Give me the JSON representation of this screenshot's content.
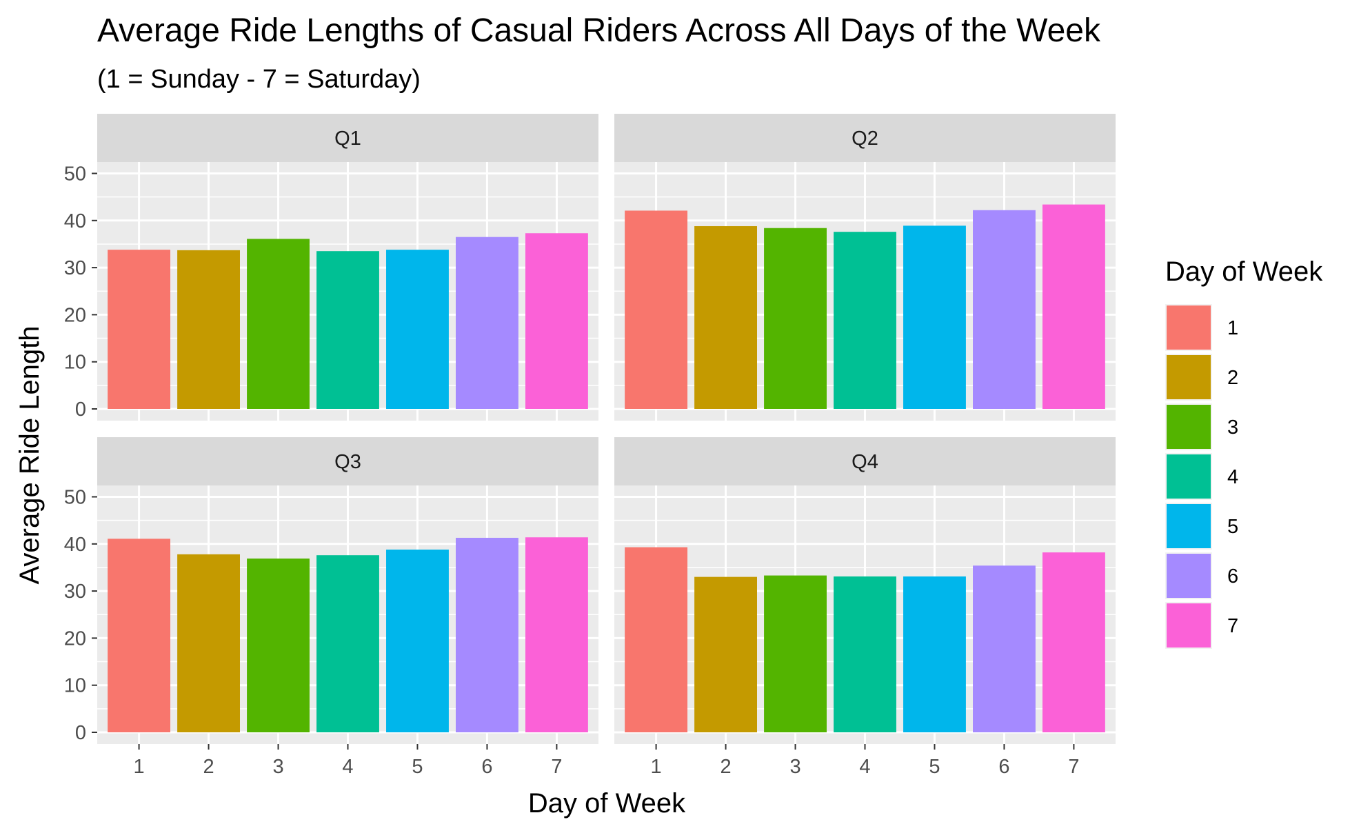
{
  "chart_data": {
    "type": "bar",
    "title": "Average Ride Lengths of Casual Riders Across All Days of the Week",
    "subtitle": "(1 = Sunday - 7 = Saturday)",
    "xlabel": "Day of Week",
    "ylabel": "Average Ride Length",
    "categories": [
      "1",
      "2",
      "3",
      "4",
      "5",
      "6",
      "7"
    ],
    "yticks": [
      0,
      10,
      20,
      30,
      40,
      50
    ],
    "ylim": [
      0,
      52
    ],
    "grid": true,
    "facets": [
      {
        "name": "Q1",
        "values": [
          33.8,
          33.7,
          36.1,
          33.5,
          33.8,
          36.5,
          37.3
        ]
      },
      {
        "name": "Q2",
        "values": [
          42.1,
          38.8,
          38.4,
          37.6,
          38.9,
          42.2,
          43.4
        ]
      },
      {
        "name": "Q3",
        "values": [
          41.1,
          37.8,
          36.9,
          37.6,
          38.8,
          41.3,
          41.4
        ]
      },
      {
        "name": "Q4",
        "values": [
          39.3,
          33.0,
          33.3,
          33.1,
          33.1,
          35.4,
          38.2
        ]
      }
    ],
    "legend": {
      "title": "Day of Week",
      "placement": "right",
      "entries": [
        "1",
        "2",
        "3",
        "4",
        "5",
        "6",
        "7"
      ]
    },
    "colors": [
      "#F8766D",
      "#C49A00",
      "#53B400",
      "#00C094",
      "#00B6EB",
      "#A58AFF",
      "#FB61D7"
    ],
    "panel_background": "#EBEBEB",
    "strip_background": "#D9D9D9",
    "grid_color": "#FFFFFF"
  }
}
